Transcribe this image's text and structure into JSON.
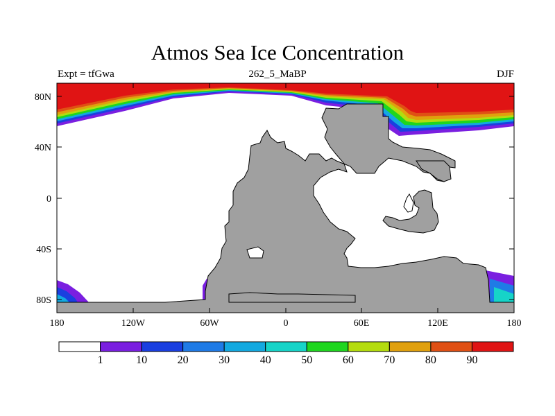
{
  "title": "Atmos Sea Ice Concentration",
  "left_subtitle": "Expt = tfGwa",
  "center_subtitle": "262_5_MaBP",
  "right_subtitle": "DJF",
  "lat_labels": [
    "80N",
    "40N",
    "0",
    "40S",
    "80S"
  ],
  "lon_labels": [
    "180",
    "120W",
    "60W",
    "0",
    "60E",
    "120E",
    "180"
  ],
  "colorbar": {
    "colors": [
      "#ffffff",
      "#7a1fe0",
      "#1a3fe0",
      "#1f7be6",
      "#13a9e0",
      "#16d4c8",
      "#1fd61f",
      "#b4dc0e",
      "#e0a00e",
      "#e05014",
      "#e01414"
    ],
    "labels": [
      "1",
      "10",
      "20",
      "30",
      "40",
      "50",
      "60",
      "70",
      "80",
      "90"
    ]
  },
  "colors": {
    "land": "#a0a0a0",
    "ice_high": "#e01414",
    "ice_low": "#7a1fe0"
  }
}
